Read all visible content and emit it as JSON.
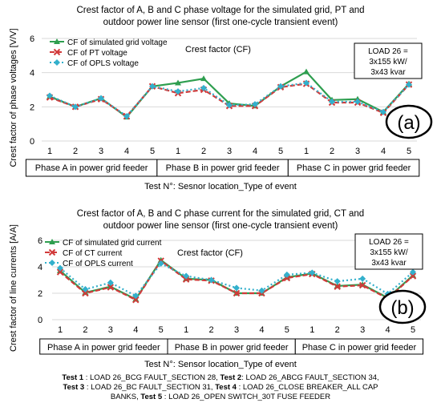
{
  "chart_data": [
    {
      "type": "line",
      "title_lines": [
        "Crest factor of A, B and C phase voltage for the simulated grid, PT and",
        "outdoor power line sensor (first one-cycle transient event)"
      ],
      "ylabel": "Crest factor of phase voltages [V/V]",
      "xlabel": "Test N°: Sesnor location_Type of event",
      "inner_title": "Crest factor (CF)",
      "ylim": [
        0,
        6
      ],
      "yticks": [
        "0",
        "2",
        "4",
        "6"
      ],
      "x_tick_labels": [
        "1",
        "2",
        "3",
        "4",
        "5",
        "1",
        "2",
        "3",
        "4",
        "5",
        "1",
        "2",
        "3",
        "4",
        "5"
      ],
      "groups": [
        "Phase A in power grid feeder",
        "Phase B in power grid feeder",
        "Phase C in power grid feeder"
      ],
      "load_box": [
        "LOAD 26 =",
        "3x155 kW/",
        "3x43 kvar"
      ],
      "panel_label": "(a)",
      "legend_position": "top-left",
      "series": [
        {
          "name": "CF of simulated grid voltage",
          "color": "#2e9e4f",
          "marker": "triangle",
          "dash": "solid",
          "values": [
            2.6,
            2.0,
            2.5,
            1.4,
            3.2,
            3.4,
            3.65,
            2.2,
            2.05,
            3.2,
            4.05,
            2.4,
            2.45,
            1.7,
            3.35
          ]
        },
        {
          "name": "CF of PT voltage",
          "color": "#d13a3a",
          "marker": "x",
          "dash": "dash",
          "values": [
            2.55,
            2.0,
            2.45,
            1.45,
            3.2,
            2.8,
            3.0,
            2.05,
            2.05,
            3.15,
            3.35,
            2.25,
            2.25,
            1.65,
            3.3
          ]
        },
        {
          "name": "CF of OPLS voltage",
          "color": "#33b0cc",
          "marker": "diamond",
          "dash": "dot",
          "values": [
            2.65,
            2.0,
            2.5,
            1.45,
            3.2,
            2.9,
            3.1,
            2.1,
            2.15,
            3.2,
            3.4,
            2.3,
            2.3,
            1.7,
            3.3
          ]
        }
      ]
    },
    {
      "type": "line",
      "title_lines": [
        "Crest factor of A, B and C phase current for the simulated grid, CT and",
        "outdoor power line sensor (first one-cycle transient event)"
      ],
      "ylabel": "Crest factor of line currents [A/A]",
      "xlabel": "Test N°: Sensor location_Type of event",
      "inner_title": "Crest factor (CF)",
      "ylim": [
        0,
        6
      ],
      "yticks": [
        "0",
        "2",
        "4",
        "6"
      ],
      "x_tick_labels": [
        "1",
        "2",
        "3",
        "4",
        "5",
        "1",
        "2",
        "3",
        "4",
        "5",
        "1",
        "2",
        "3",
        "4",
        "5"
      ],
      "groups": [
        "Phase A in power grid feeder",
        "Phase B in power grid feeder",
        "Phase C in power grid feeder"
      ],
      "load_box": [
        "LOAD 26 =",
        "3x155 kW/",
        "3x43 kvar"
      ],
      "panel_label": "(b)",
      "legend_position": "top-left",
      "series": [
        {
          "name": "CF of simulated grid current",
          "color": "#2e9e4f",
          "marker": "triangle",
          "dash": "solid",
          "values": [
            3.7,
            2.05,
            2.5,
            1.55,
            4.5,
            3.1,
            3.0,
            2.0,
            2.0,
            3.2,
            3.5,
            2.55,
            2.65,
            1.65,
            3.35
          ]
        },
        {
          "name": "CF of CT current",
          "color": "#d13a3a",
          "marker": "x",
          "dash": "dash",
          "values": [
            3.6,
            2.0,
            2.45,
            1.5,
            4.45,
            3.05,
            2.95,
            2.0,
            2.0,
            3.15,
            3.45,
            2.5,
            2.6,
            1.6,
            3.3
          ]
        },
        {
          "name": "CF of OPLS current",
          "color": "#33b0cc",
          "marker": "diamond",
          "dash": "dot",
          "values": [
            3.9,
            2.3,
            2.8,
            1.8,
            4.25,
            3.3,
            3.0,
            2.4,
            2.2,
            3.4,
            3.55,
            2.9,
            3.1,
            1.95,
            3.6
          ]
        }
      ]
    }
  ],
  "footnote": [
    {
      "bold": "Test 1",
      "text": " : LOAD 26_BCG FAULT_SECTION 28, "
    },
    {
      "bold": "Test 2",
      "text": ": LOAD 26_ABCG FAULT_SECTION 34,"
    },
    {
      "bold": "Test 3",
      "text": " : LOAD 26_BC FAULT_SECTION 31, "
    },
    {
      "bold": "Test 4",
      "text": " : LOAD 26_CLOSE BREAKER_ALL CAP"
    },
    {
      "bold": "",
      "text": "BANKS, "
    },
    {
      "bold": "Test 5",
      "text": " : LOAD 26_OPEN SWITCH_30T FUSE FEEDER"
    }
  ]
}
